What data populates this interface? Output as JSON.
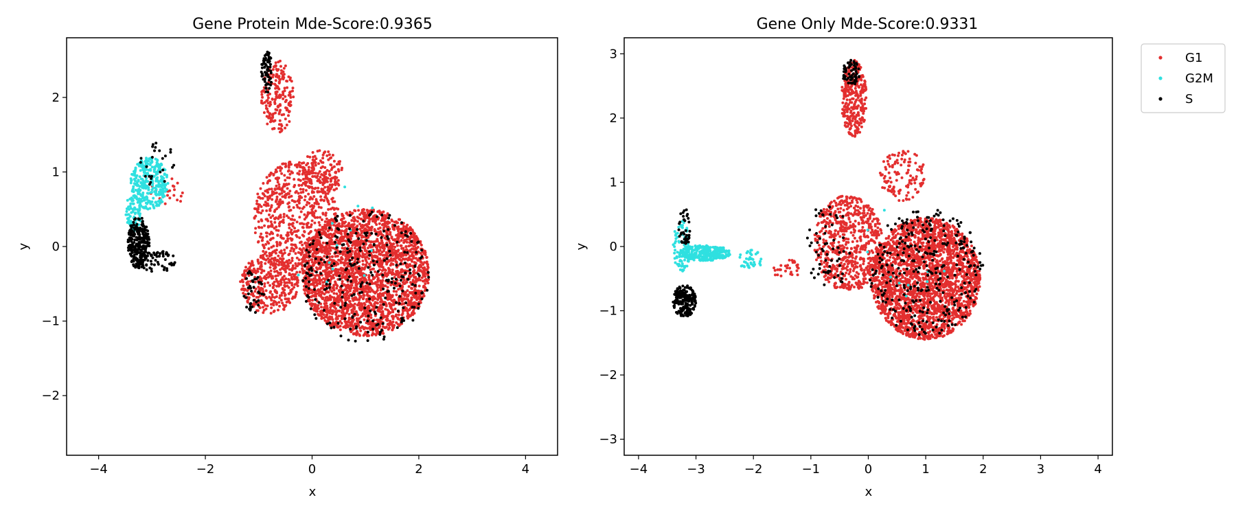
{
  "colors": {
    "G1": "#e32f2f",
    "G2M": "#2fe0e0",
    "S": "#000000"
  },
  "legend": {
    "entries": [
      "G1",
      "G2M",
      "S"
    ],
    "placement": "outside-right-top"
  },
  "chart_data": [
    {
      "type": "scatter",
      "title": "Gene Protein Mde-Score:0.9365",
      "xlabel": "x",
      "ylabel": "y",
      "xlim": [
        -4.6,
        4.6
      ],
      "ylim": [
        -2.8,
        2.8
      ],
      "xticks": [
        -4,
        -2,
        0,
        2,
        4
      ],
      "yticks": [
        -2,
        -1,
        0,
        1,
        2
      ],
      "xtick_labels": [
        "−4",
        "−2",
        "0",
        "2",
        "4"
      ],
      "ytick_labels": [
        "−2",
        "−1",
        "0",
        "1",
        "2"
      ],
      "grid": false,
      "series": [
        {
          "name": "G1",
          "clusters": [
            {
              "cx": 1.0,
              "cy": -0.35,
              "rx": 1.2,
              "ry": 0.85,
              "n": 2600
            },
            {
              "cx": -0.3,
              "cy": 0.4,
              "rx": 0.8,
              "ry": 0.75,
              "n": 700
            },
            {
              "cx": -0.8,
              "cy": -0.5,
              "rx": 0.55,
              "ry": 0.4,
              "n": 350
            },
            {
              "cx": -0.65,
              "cy": 2.0,
              "rx": 0.3,
              "ry": 0.5,
              "n": 200
            },
            {
              "cx": 0.2,
              "cy": 1.0,
              "rx": 0.4,
              "ry": 0.3,
              "n": 150
            },
            {
              "cx": -2.7,
              "cy": 0.75,
              "rx": 0.35,
              "ry": 0.2,
              "n": 25
            }
          ]
        },
        {
          "name": "G2M",
          "clusters": [
            {
              "cx": -3.05,
              "cy": 0.85,
              "rx": 0.35,
              "ry": 0.35,
              "n": 320
            },
            {
              "cx": -3.35,
              "cy": 0.45,
              "rx": 0.15,
              "ry": 0.25,
              "n": 80
            },
            {
              "cx": 0.6,
              "cy": 0.0,
              "rx": 1.0,
              "ry": 0.8,
              "n": 12
            }
          ]
        },
        {
          "name": "S",
          "clusters": [
            {
              "cx": -3.25,
              "cy": 0.05,
              "rx": 0.2,
              "ry": 0.35,
              "n": 260
            },
            {
              "cx": -2.95,
              "cy": -0.2,
              "rx": 0.4,
              "ry": 0.15,
              "n": 60
            },
            {
              "cx": -0.85,
              "cy": 2.35,
              "rx": 0.1,
              "ry": 0.3,
              "n": 70
            },
            {
              "cx": 1.0,
              "cy": -0.4,
              "rx": 1.2,
              "ry": 0.9,
              "n": 260
            },
            {
              "cx": -1.1,
              "cy": -0.6,
              "rx": 0.2,
              "ry": 0.3,
              "n": 40
            },
            {
              "cx": -2.9,
              "cy": 1.1,
              "rx": 0.35,
              "ry": 0.3,
              "n": 25
            }
          ]
        }
      ]
    },
    {
      "type": "scatter",
      "title": "Gene Only Mde-Score:0.9331",
      "xlabel": "x",
      "ylabel": "y",
      "xlim": [
        -4.25,
        4.25
      ],
      "ylim": [
        -3.25,
        3.25
      ],
      "xticks": [
        -4,
        -3,
        -2,
        -1,
        0,
        1,
        2,
        3,
        4
      ],
      "yticks": [
        -3,
        -2,
        -1,
        0,
        1,
        2,
        3
      ],
      "xtick_labels": [
        "−4",
        "−3",
        "−2",
        "−1",
        "0",
        "1",
        "2",
        "3",
        "4"
      ],
      "ytick_labels": [
        "−3",
        "−2",
        "−1",
        "0",
        "1",
        "2",
        "3"
      ],
      "grid": false,
      "series": [
        {
          "name": "G1",
          "clusters": [
            {
              "cx": 1.0,
              "cy": -0.5,
              "rx": 0.95,
              "ry": 0.95,
              "n": 2600
            },
            {
              "cx": -0.35,
              "cy": 0.05,
              "rx": 0.6,
              "ry": 0.75,
              "n": 700
            },
            {
              "cx": -0.25,
              "cy": 2.3,
              "rx": 0.22,
              "ry": 0.6,
              "n": 300
            },
            {
              "cx": 0.6,
              "cy": 1.1,
              "rx": 0.4,
              "ry": 0.4,
              "n": 120
            },
            {
              "cx": -1.4,
              "cy": -0.35,
              "rx": 0.3,
              "ry": 0.15,
              "n": 30
            }
          ]
        },
        {
          "name": "G2M",
          "clusters": [
            {
              "cx": -2.85,
              "cy": -0.1,
              "rx": 0.45,
              "ry": 0.12,
              "n": 280
            },
            {
              "cx": -3.25,
              "cy": 0.0,
              "rx": 0.15,
              "ry": 0.4,
              "n": 90
            },
            {
              "cx": -2.05,
              "cy": -0.2,
              "rx": 0.25,
              "ry": 0.15,
              "n": 40
            },
            {
              "cx": 0.5,
              "cy": 0.0,
              "rx": 1.0,
              "ry": 0.8,
              "n": 10
            }
          ]
        },
        {
          "name": "S",
          "clusters": [
            {
              "cx": -3.2,
              "cy": -0.85,
              "rx": 0.2,
              "ry": 0.25,
              "n": 200
            },
            {
              "cx": -3.2,
              "cy": 0.3,
              "rx": 0.1,
              "ry": 0.35,
              "n": 40
            },
            {
              "cx": -0.3,
              "cy": 2.7,
              "rx": 0.15,
              "ry": 0.2,
              "n": 60
            },
            {
              "cx": 1.0,
              "cy": -0.4,
              "rx": 1.0,
              "ry": 1.0,
              "n": 300
            },
            {
              "cx": -0.7,
              "cy": 0.0,
              "rx": 0.4,
              "ry": 0.7,
              "n": 60
            }
          ]
        }
      ]
    }
  ]
}
